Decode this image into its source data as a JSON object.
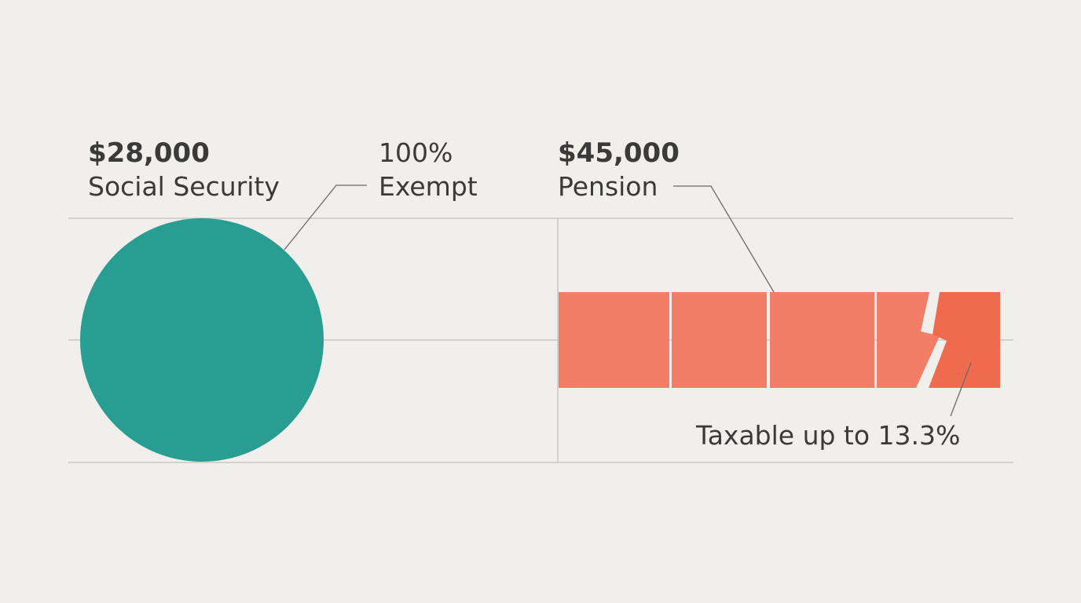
{
  "left": {
    "amount": "$28,000",
    "label": "Social Security",
    "callout_top": "100%",
    "callout_bottom": "Exempt"
  },
  "right": {
    "amount": "$45,000",
    "label": "Pension",
    "callout": "Taxable up to 13.3%"
  }
}
